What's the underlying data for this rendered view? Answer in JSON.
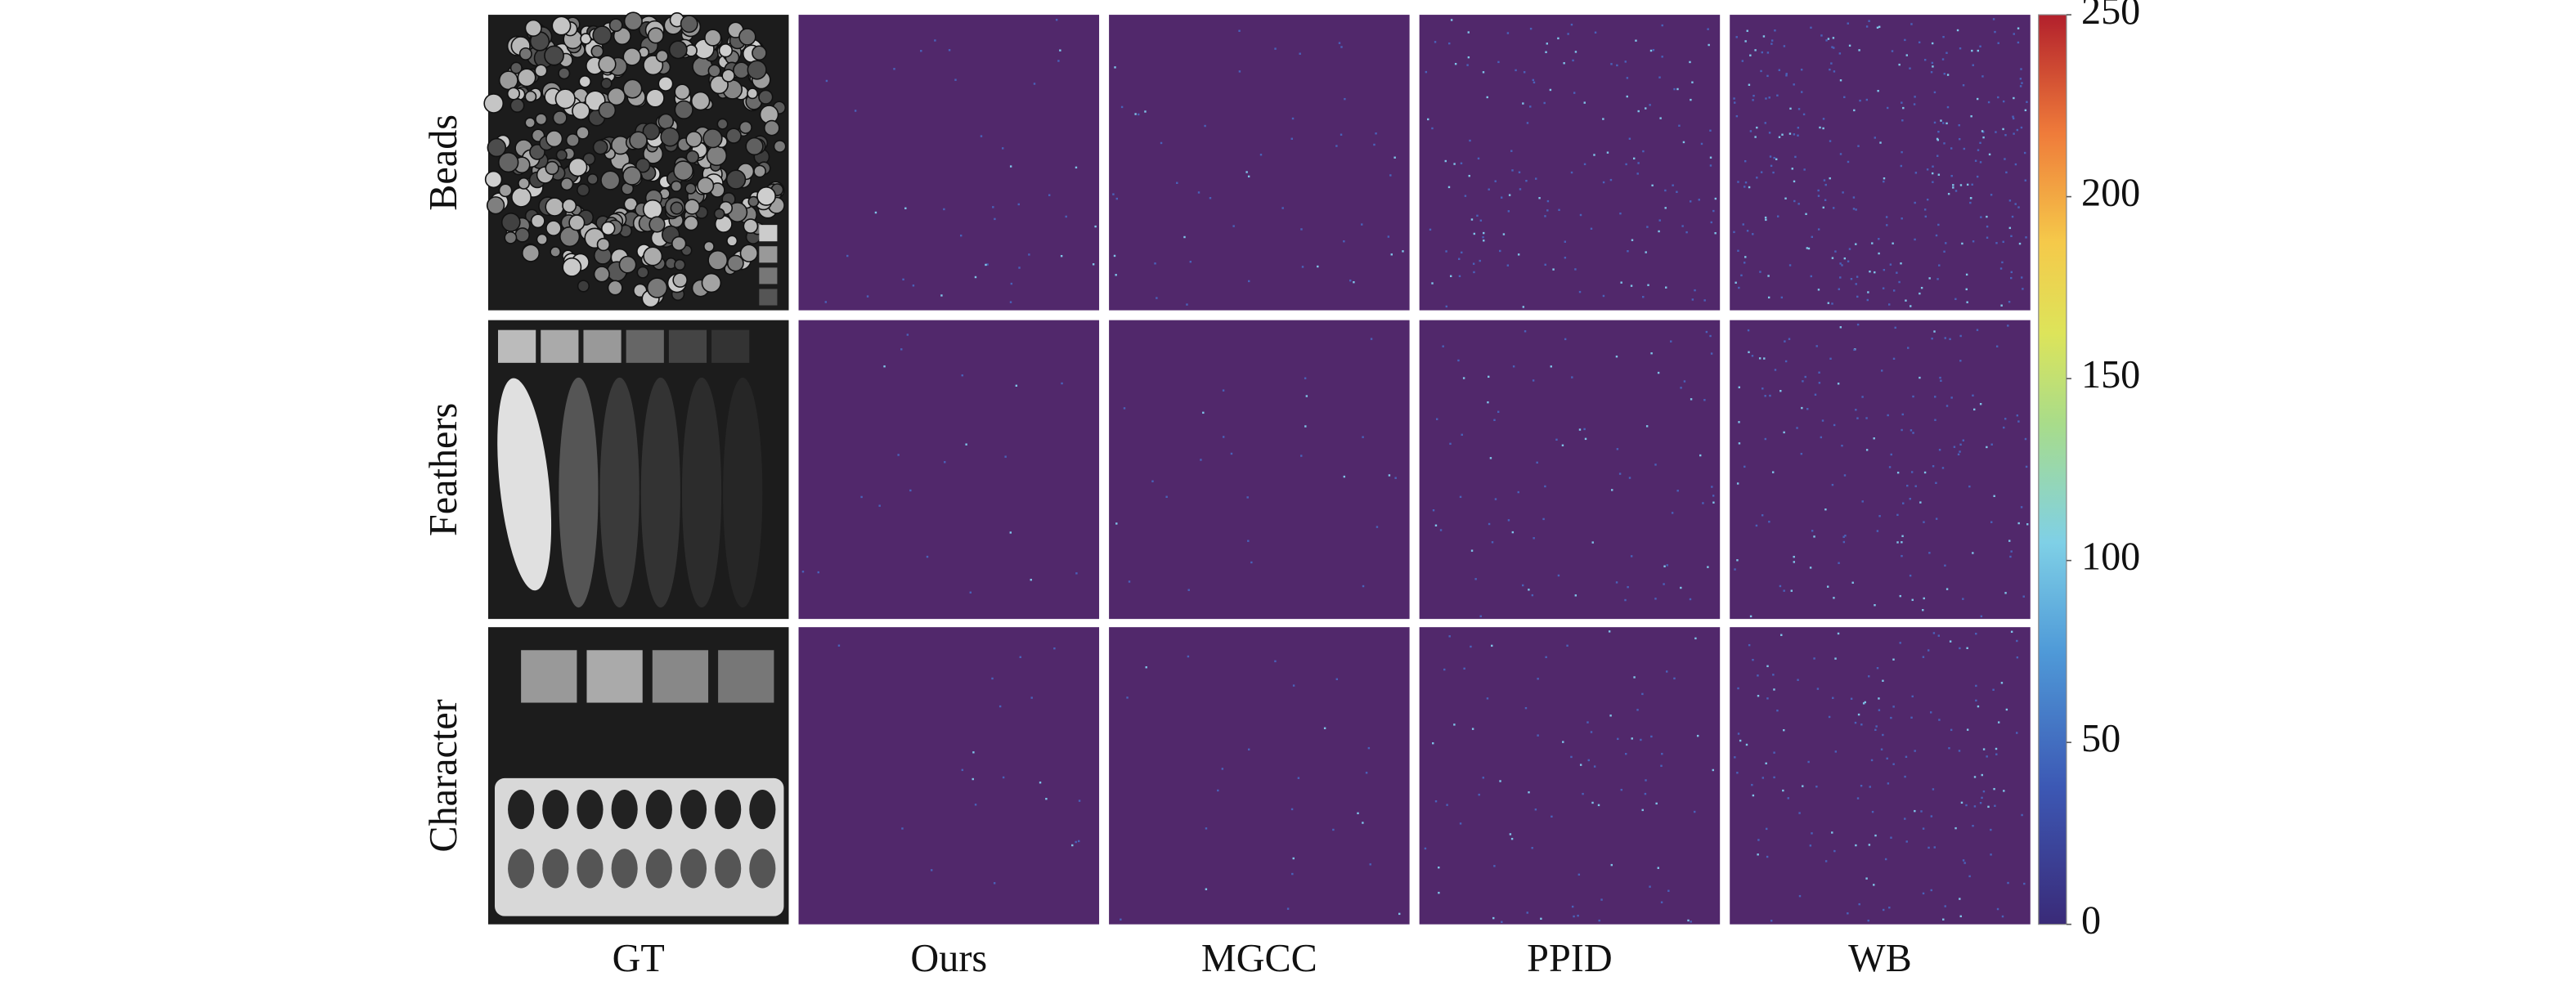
{
  "figure": {
    "rows": [
      "Beads",
      "Feathers",
      "Character"
    ],
    "columns": [
      "GT",
      "Ours",
      "MGCC",
      "PPID",
      "WB"
    ],
    "colorbar": {
      "lim": [
        0,
        250
      ],
      "ticks": [
        0,
        50,
        100,
        150,
        200,
        250
      ]
    }
  }
}
